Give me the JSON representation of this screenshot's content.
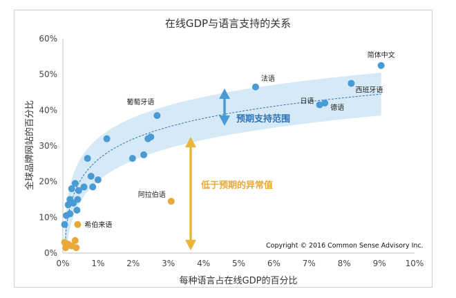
{
  "chart_data": {
    "type": "scatter",
    "title": "在线GDP与语言支持的关系",
    "xlabel": "每种语言占在线GDP的百分比",
    "ylabel": "全球品牌网站的百分比",
    "xlim": [
      0,
      10
    ],
    "ylim": [
      0,
      60
    ],
    "x_ticks": [
      "0%",
      "1%",
      "2%",
      "3%",
      "4%",
      "5%",
      "6%",
      "7%",
      "8%",
      "9%",
      "10%"
    ],
    "y_ticks": [
      "0%",
      "10%",
      "20%",
      "30%",
      "40%",
      "50%",
      "60%"
    ],
    "grid": false,
    "trend": {
      "type": "log",
      "band_halfwidth": 6
    },
    "series": [
      {
        "color": "#4a9ad3",
        "points": [
          [
            0.05,
            8
          ],
          [
            0.1,
            10.5
          ],
          [
            0.15,
            13.5
          ],
          [
            0.2,
            11
          ],
          [
            0.2,
            15
          ],
          [
            0.25,
            18
          ],
          [
            0.3,
            14
          ],
          [
            0.35,
            19.5
          ],
          [
            0.4,
            12
          ],
          [
            0.42,
            15
          ],
          [
            0.45,
            17.5
          ],
          [
            0.6,
            18.5
          ],
          [
            0.7,
            26.5
          ],
          [
            0.8,
            21.5
          ],
          [
            0.85,
            18.5
          ],
          [
            1.0,
            20.5
          ],
          [
            1.25,
            32
          ],
          [
            1.98,
            26.5
          ],
          [
            2.3,
            27.5
          ],
          [
            2.42,
            32
          ],
          [
            2.5,
            32.5
          ],
          [
            2.68,
            38.5
          ],
          [
            5.48,
            46.5
          ],
          [
            7.3,
            41.5
          ],
          [
            7.45,
            42
          ],
          [
            8.2,
            47.5
          ],
          [
            9.05,
            52.5
          ]
        ]
      },
      {
        "color": "#e8a93a",
        "points": [
          [
            0.05,
            3
          ],
          [
            0.08,
            1.5
          ],
          [
            0.15,
            2.5
          ],
          [
            0.25,
            2
          ],
          [
            0.35,
            3.5
          ],
          [
            0.38,
            1.5
          ],
          [
            0.42,
            8
          ],
          [
            3.08,
            14.5
          ]
        ]
      }
    ],
    "labels": [
      {
        "text": "简体中文",
        "x": 9.05,
        "y": 52.5
      },
      {
        "text": "法语",
        "x": 5.48,
        "y": 46.5
      },
      {
        "text": "葡萄牙语",
        "x": 2.68,
        "y": 38.5
      },
      {
        "text": "日语",
        "x": 7.3,
        "y": 41.5
      },
      {
        "text": "德语",
        "x": 7.45,
        "y": 42
      },
      {
        "text": "西班牙语",
        "x": 8.2,
        "y": 47.5
      },
      {
        "text": "阿拉伯语",
        "x": 3.08,
        "y": 14.5
      },
      {
        "text": "希伯来语",
        "x": 0.42,
        "y": 8
      }
    ],
    "annotations": {
      "expected_range": "预期支持范围",
      "anomaly": "低于预期的异常值"
    },
    "copyright": "Copyright © 2016 Common Sense Advisory Inc.",
    "colors": {
      "blue": "#4a9ad3",
      "gold": "#e8a93a",
      "band": "#d6e9f7",
      "arrow_blue": "#4a9ad3",
      "arrow_gold": "#e8b43a"
    }
  }
}
